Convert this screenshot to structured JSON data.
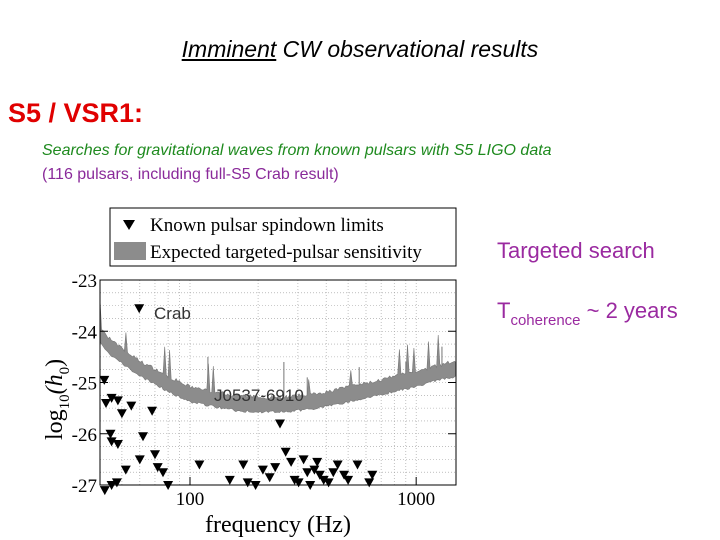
{
  "slide": {
    "title_underlined": "Imminent",
    "title_rest": " CW observational results",
    "heading": "S5 / VSR1:",
    "subtitle_line1": "Searches for gravitational waves from known pulsars with S5 LIGO data",
    "subtitle_line2": "(116 pulsars, including full-S5 Crab result)",
    "side_label_1": "Targeted search",
    "side_label_2_main": "T",
    "side_label_2_sub": "coherence",
    "side_label_2_rest": " ~ 2 years"
  },
  "chart_data": {
    "type": "scatter",
    "xscale": "log",
    "xlim": [
      40,
      1500
    ],
    "ylim": [
      -27,
      -23
    ],
    "xticks": [
      100,
      1000
    ],
    "xtick_labels": [
      "100",
      "1000"
    ],
    "yticks": [
      -23,
      -24,
      -25,
      -26,
      -27
    ],
    "ytick_labels": [
      "-23",
      "-24",
      "-25",
      "-26",
      "-27"
    ],
    "xlabel": "frequency (Hz)",
    "ylabel_main": "log",
    "ylabel_sub": "10",
    "ylabel_paren": "(h",
    "ylabel_sub2": "0",
    "ylabel_close": ")",
    "grid": true,
    "legend_position": "top",
    "legend": [
      {
        "label": "Known pulsar spindown limits",
        "marker": "triangle-down",
        "color": "#000000"
      },
      {
        "label": "Expected targeted-pulsar sensitivity",
        "marker": "band",
        "color": "#8c8c8c"
      }
    ],
    "annotations": [
      {
        "text": "Crab",
        "x": 62,
        "y": -23.6
      },
      {
        "text": "J0537-6910",
        "x": 80,
        "y": -25.2
      }
    ],
    "sensitivity_curve": {
      "name": "Expected targeted-pulsar sensitivity",
      "x": [
        40,
        45,
        50,
        60,
        70,
        80,
        100,
        130,
        160,
        200,
        260,
        330,
        400,
        500,
        650,
        800,
        1000,
        1200,
        1500
      ],
      "y": [
        -24.1,
        -24.35,
        -24.5,
        -24.75,
        -24.9,
        -25.05,
        -25.25,
        -25.35,
        -25.42,
        -25.45,
        -25.45,
        -25.4,
        -25.35,
        -25.25,
        -25.15,
        -25.05,
        -24.95,
        -24.85,
        -24.75
      ]
    },
    "spindown_limits": {
      "name": "Known pulsar spindown limits",
      "points": [
        [
          59.6,
          -23.55
        ],
        [
          41.8,
          -24.95
        ],
        [
          42.5,
          -25.4
        ],
        [
          45,
          -25.3
        ],
        [
          48,
          -25.35
        ],
        [
          50,
          -25.6
        ],
        [
          55,
          -25.45
        ],
        [
          62,
          -26.05
        ],
        [
          68,
          -25.55
        ],
        [
          44.5,
          -26.0
        ],
        [
          45,
          -26.15
        ],
        [
          48,
          -26.2
        ],
        [
          60,
          -26.5
        ],
        [
          70,
          -26.4
        ],
        [
          72,
          -26.65
        ],
        [
          76,
          -26.75
        ],
        [
          80,
          -27.0
        ],
        [
          52,
          -26.7
        ],
        [
          45,
          -27.0
        ],
        [
          47.5,
          -26.95
        ],
        [
          42,
          -27.1
        ],
        [
          110,
          -26.6
        ],
        [
          150,
          -26.9
        ],
        [
          172,
          -26.6
        ],
        [
          180,
          -26.95
        ],
        [
          195,
          -27.0
        ],
        [
          210,
          -26.7
        ],
        [
          225,
          -26.85
        ],
        [
          238,
          -26.65
        ],
        [
          250,
          -25.8
        ],
        [
          265,
          -26.35
        ],
        [
          280,
          -26.55
        ],
        [
          290,
          -26.9
        ],
        [
          302,
          -26.95
        ],
        [
          318,
          -26.5
        ],
        [
          330,
          -26.75
        ],
        [
          340,
          -27.0
        ],
        [
          355,
          -26.7
        ],
        [
          365,
          -26.55
        ],
        [
          375,
          -26.8
        ],
        [
          390,
          -26.9
        ],
        [
          410,
          -26.95
        ],
        [
          430,
          -26.75
        ],
        [
          450,
          -26.6
        ],
        [
          480,
          -26.8
        ],
        [
          500,
          -26.9
        ],
        [
          550,
          -26.6
        ],
        [
          620,
          -26.95
        ],
        [
          640,
          -26.8
        ]
      ]
    }
  }
}
